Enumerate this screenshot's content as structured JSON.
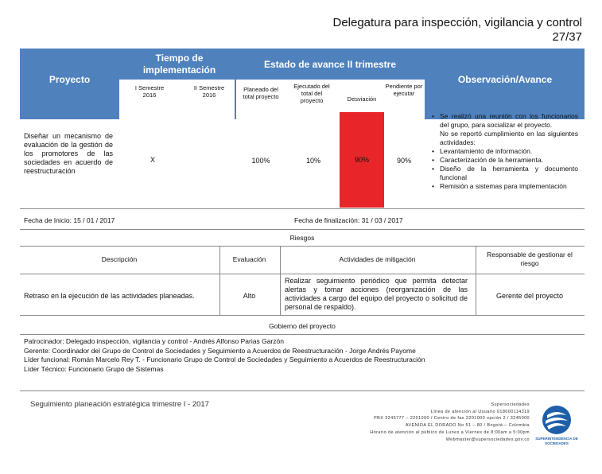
{
  "header": {
    "title": "Delegatura para inspección, vigilancia y control",
    "page": "27/37"
  },
  "table_header": {
    "proyecto": "Proyecto",
    "tiempo": "Tiempo de implementación",
    "estado": "Estado de avance II trimestre",
    "observacion": "Observación/Avance",
    "semestre1": "I Semestre 2016",
    "semestre2": "II Semestre 2016",
    "planeado": "Planeado del total proyecto",
    "ejecutado": "Ejecutado del total del proyecto",
    "desviacion": "Desviación",
    "pendiente": "Pendiente por ejecutar"
  },
  "row": {
    "proyecto": "Diseñar un mecanismo de evaluación de la gestión de los promotores de las sociedades en acuerdo de reestructuración",
    "semestre1": "X",
    "planeado": "100%",
    "ejecutado": "10%",
    "desviacion": "90%",
    "pendiente": "90%",
    "desviacion_color": "#e8262a",
    "observaciones": [
      {
        "text": "Se realizó una reunión con los funcionarios del grupo, para socializar el proyecto.",
        "bullet": true
      },
      {
        "text": "No se reportó cumplimiento en las siguientes actividades:",
        "bullet": false
      },
      {
        "text": "Levantamiento de información.",
        "bullet": true
      },
      {
        "text": "Caracterización de la herramienta.",
        "bullet": true
      },
      {
        "text": "Diseño de la herramienta y documento funcional",
        "bullet": true
      },
      {
        "text": "Remisión a sistemas para implementación",
        "bullet": true
      }
    ]
  },
  "dates": {
    "inicio": "Fecha de Inicio: 15 / 01 / 2017",
    "fin": "Fecha de finalización: 31 / 03 / 2017"
  },
  "riesgos": {
    "title": "Riesgos",
    "col_descripcion": "Descripción",
    "col_evaluacion": "Evaluación",
    "col_actividades": "Actividades de mitigación",
    "col_responsable": "Responsable de gestionar el riesgo",
    "descripcion": "Retraso en la ejecución de las actividades planeadas.",
    "evaluacion": "Alto",
    "actividades": "Realizar seguimiento periódico que permita detectar alertas y tomar acciones (reorganización de las actividades a cargo del equipo del proyecto o solicitud de personal de respaldo).",
    "responsable": "Gerente del proyecto"
  },
  "gobierno": {
    "title": "Gobierno del proyecto",
    "lines": [
      "Patrocinador: Delegado inspección, vigilancia y control - Andrés Alfonso Parias Garzón",
      "Gerente: Coordinador del Grupo de Control de Sociedades y Seguimiento a Acuerdos de Reestructuración - Jorge Andrés Payome",
      "Líder funcional: Román Marcelo Rey T. - Funcionario Grupo de Control de Sociedades y Seguimiento a Acuerdos de Reestructuración",
      "Líder Técnico: Funcionario Grupo de Sistemas"
    ]
  },
  "footer": {
    "left": "Seguimiento planeación estratégica trimestre I - 2017",
    "contact": [
      "Supersociedades",
      "Línea de atención al Usuario 018000114319",
      "PBX 3245777 – 2201000 / Centro de fax 2201000 opción 2 / 3245000",
      "AVENIDA EL DORADO No 51 – 80 / Bogotá – Colombia",
      "Horario de atención al público de Lunes a Viernes de 8:00am a 5:00pm",
      "Webmaster@supersociedades.gov.co"
    ],
    "logo_text": "SUPERINTENDENCIA DE SOCIEDADES",
    "logo_color": "#1f5fa8"
  }
}
